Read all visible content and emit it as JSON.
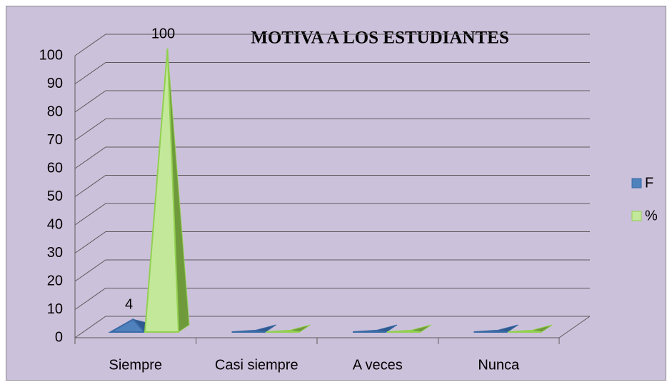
{
  "chart_data": {
    "type": "pyramid3d",
    "title": "MOTIVA A LOS ESTUDIANTES",
    "categories": [
      "Siempre",
      "Casi siempre",
      "A veces",
      "Nunca"
    ],
    "series": [
      {
        "name": "F",
        "color": "#4f81bd",
        "values": [
          4,
          0,
          0,
          0
        ]
      },
      {
        "name": "%",
        "color": "#c3e89a",
        "values": [
          100,
          0,
          0,
          0
        ]
      }
    ],
    "ylim": [
      0,
      100
    ],
    "yticks": [
      0,
      10,
      20,
      30,
      40,
      50,
      60,
      70,
      80,
      90,
      100
    ],
    "grid": true,
    "legend": "right"
  }
}
